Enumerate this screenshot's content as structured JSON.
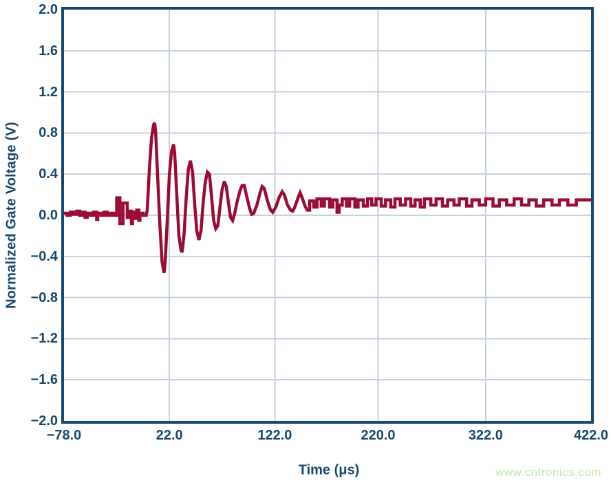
{
  "colors": {
    "navy": "#17486e",
    "grid": "#c5d1de",
    "trace": "#9a0c32",
    "watermark_green": "#c4e6ae",
    "background": "#ffffff"
  },
  "watermark": {
    "text": "www.cntronics.com"
  },
  "chart_data": {
    "type": "line",
    "title": "",
    "xlabel": "Time (μs)",
    "ylabel": "Normalized Gate Voltage (V)",
    "xlim": [
      -78,
      422
    ],
    "ylim": [
      -2.0,
      2.0
    ],
    "grid": true,
    "legend_position": "none",
    "xticks": {
      "values": [
        -78,
        22,
        122,
        220,
        322,
        422
      ],
      "labels": [
        "−78.0",
        "22.0",
        "122.0",
        "220.0",
        "322.0",
        "422.0"
      ]
    },
    "yticks": {
      "values": [
        2.0,
        1.6,
        1.2,
        0.8,
        0.4,
        0.0,
        -0.4,
        -0.8,
        -1.2,
        -1.6,
        -2.0
      ],
      "labels": [
        "2.0",
        "1.6",
        "1.2",
        "0.8",
        "0.4",
        "0.0",
        "−0.4",
        "−0.8",
        "−1.2",
        "−1.6",
        "−2.0"
      ]
    },
    "series": [
      {
        "name": "normalized gate voltage",
        "color": "#9a0c32",
        "stroke_width": 4.5,
        "points": [
          [
            -78,
            0.02
          ],
          [
            -75,
            0.02
          ],
          [
            -75,
            0
          ],
          [
            -72,
            0
          ],
          [
            -72,
            0.03
          ],
          [
            -69,
            0.03
          ],
          [
            -69,
            0.01
          ],
          [
            -66,
            0.01
          ],
          [
            -66,
            0.04
          ],
          [
            -63,
            0.04
          ],
          [
            -63,
            0
          ],
          [
            -60,
            0
          ],
          [
            -60,
            0.03
          ],
          [
            -58,
            0.03
          ],
          [
            -58,
            -0.02
          ],
          [
            -56,
            -0.02
          ],
          [
            -56,
            0.02
          ],
          [
            -53,
            0.02
          ],
          [
            -53,
            0
          ],
          [
            -50,
            0
          ],
          [
            -50,
            0.03
          ],
          [
            -47,
            0.03
          ],
          [
            -47,
            -0.04
          ],
          [
            -46,
            -0.04
          ],
          [
            -46,
            0.02
          ],
          [
            -43,
            0.02
          ],
          [
            -43,
            0
          ],
          [
            -40,
            0
          ],
          [
            -40,
            0.03
          ],
          [
            -37,
            0.03
          ],
          [
            -37,
            0
          ],
          [
            -34,
            0
          ],
          [
            -34,
            0.02
          ],
          [
            -31,
            0.02
          ],
          [
            -31,
            0
          ],
          [
            -28,
            0
          ],
          [
            -28,
            0.17
          ],
          [
            -25,
            0.17
          ],
          [
            -25,
            -0.08
          ],
          [
            -22,
            -0.08
          ],
          [
            -22,
            0.12
          ],
          [
            -18,
            0.12
          ],
          [
            -18,
            -0.02
          ],
          [
            -16,
            -0.02
          ],
          [
            -16,
            0.04
          ],
          [
            -14,
            0.04
          ],
          [
            -14,
            -0.08
          ],
          [
            -13,
            -0.08
          ],
          [
            -13,
            0.03
          ],
          [
            -11,
            0.03
          ],
          [
            -11,
            -0.03
          ],
          [
            -9,
            -0.03
          ],
          [
            -9,
            0.05
          ],
          [
            -7,
            0.05
          ],
          [
            -7,
            -0.05
          ],
          [
            -6,
            -0.05
          ],
          [
            -6,
            0.02
          ],
          [
            -3,
            0.02
          ],
          [
            -3,
            0
          ],
          [
            0,
            0
          ],
          [
            1,
            0.05
          ],
          [
            3,
            0.45
          ],
          [
            5,
            0.75
          ],
          [
            7,
            0.88
          ],
          [
            8,
            0.9
          ],
          [
            9,
            0.8
          ],
          [
            11,
            0.35
          ],
          [
            13,
            -0.1
          ],
          [
            15,
            -0.45
          ],
          [
            17,
            -0.56
          ],
          [
            18,
            -0.45
          ],
          [
            20,
            -0.05
          ],
          [
            22,
            0.4
          ],
          [
            24,
            0.62
          ],
          [
            26,
            0.69
          ],
          [
            27,
            0.6
          ],
          [
            29,
            0.2
          ],
          [
            31,
            -0.2
          ],
          [
            33,
            -0.34
          ],
          [
            34,
            -0.36
          ],
          [
            36,
            -0.18
          ],
          [
            38,
            0.18
          ],
          [
            40,
            0.45
          ],
          [
            42,
            0.53
          ],
          [
            44,
            0.42
          ],
          [
            46,
            0.1
          ],
          [
            48,
            -0.15
          ],
          [
            50,
            -0.24
          ],
          [
            52,
            -0.15
          ],
          [
            54,
            0.12
          ],
          [
            56,
            0.32
          ],
          [
            58,
            0.42
          ],
          [
            60,
            0.4
          ],
          [
            62,
            0.18
          ],
          [
            64,
            -0.05
          ],
          [
            66,
            -0.13
          ],
          [
            68,
            -0.1
          ],
          [
            70,
            0.08
          ],
          [
            72,
            0.25
          ],
          [
            74,
            0.33
          ],
          [
            76,
            0.28
          ],
          [
            78,
            0.12
          ],
          [
            80,
            -0.02
          ],
          [
            82,
            -0.05
          ],
          [
            84,
            0.02
          ],
          [
            86,
            0.12
          ],
          [
            89,
            0.24
          ],
          [
            91,
            0.29
          ],
          [
            93,
            0.29
          ],
          [
            95,
            0.2
          ],
          [
            98,
            0.07
          ],
          [
            100,
            0.01
          ],
          [
            102,
            0.02
          ],
          [
            105,
            0.1
          ],
          [
            108,
            0.22
          ],
          [
            110,
            0.28
          ],
          [
            112,
            0.26
          ],
          [
            115,
            0.14
          ],
          [
            118,
            0.05
          ],
          [
            120,
            0.03
          ],
          [
            123,
            0.08
          ],
          [
            126,
            0.17
          ],
          [
            129,
            0.23
          ],
          [
            131,
            0.2
          ],
          [
            134,
            0.1
          ],
          [
            137,
            0.05
          ],
          [
            139,
            0.04
          ],
          [
            141,
            0.08
          ],
          [
            144,
            0.17
          ],
          [
            146,
            0.22
          ],
          [
            148,
            0.17
          ],
          [
            151,
            0.08
          ],
          [
            153,
            0.05
          ],
          [
            155,
            0.05
          ],
          [
            155,
            0.14
          ],
          [
            159,
            0.14
          ],
          [
            159,
            0.08
          ],
          [
            162,
            0.08
          ],
          [
            162,
            0.16
          ],
          [
            166,
            0.16
          ],
          [
            166,
            0.09
          ],
          [
            169,
            0.09
          ],
          [
            169,
            0.16
          ],
          [
            174,
            0.16
          ],
          [
            174,
            0.08
          ],
          [
            177,
            0.08
          ],
          [
            177,
            0.15
          ],
          [
            181,
            0.15
          ],
          [
            181,
            0.03
          ],
          [
            183,
            0.03
          ],
          [
            183,
            0.1
          ],
          [
            186,
            0.1
          ],
          [
            186,
            0.16
          ],
          [
            190,
            0.16
          ],
          [
            190,
            0.09
          ],
          [
            193,
            0.09
          ],
          [
            193,
            0.16
          ],
          [
            198,
            0.16
          ],
          [
            198,
            0.08
          ],
          [
            201,
            0.08
          ],
          [
            201,
            0.15
          ],
          [
            206,
            0.15
          ],
          [
            206,
            0.09
          ],
          [
            210,
            0.09
          ],
          [
            210,
            0.16
          ],
          [
            214,
            0.16
          ],
          [
            214,
            0.1
          ],
          [
            218,
            0.1
          ],
          [
            218,
            0.16
          ],
          [
            223,
            0.16
          ],
          [
            223,
            0.09
          ],
          [
            227,
            0.09
          ],
          [
            227,
            0.15
          ],
          [
            232,
            0.15
          ],
          [
            232,
            0.08
          ],
          [
            236,
            0.08
          ],
          [
            236,
            0.16
          ],
          [
            241,
            0.16
          ],
          [
            241,
            0.1
          ],
          [
            246,
            0.1
          ],
          [
            246,
            0.16
          ],
          [
            251,
            0.16
          ],
          [
            251,
            0.09
          ],
          [
            255,
            0.09
          ],
          [
            255,
            0.15
          ],
          [
            260,
            0.15
          ],
          [
            260,
            0.08
          ],
          [
            264,
            0.08
          ],
          [
            264,
            0.16
          ],
          [
            270,
            0.16
          ],
          [
            270,
            0.1
          ],
          [
            275,
            0.1
          ],
          [
            275,
            0.16
          ],
          [
            281,
            0.16
          ],
          [
            281,
            0.09
          ],
          [
            286,
            0.09
          ],
          [
            286,
            0.15
          ],
          [
            292,
            0.15
          ],
          [
            292,
            0.1
          ],
          [
            297,
            0.1
          ],
          [
            297,
            0.16
          ],
          [
            304,
            0.16
          ],
          [
            304,
            0.09
          ],
          [
            309,
            0.09
          ],
          [
            309,
            0.15
          ],
          [
            316,
            0.15
          ],
          [
            316,
            0.1
          ],
          [
            322,
            0.1
          ],
          [
            322,
            0.16
          ],
          [
            329,
            0.16
          ],
          [
            329,
            0.09
          ],
          [
            335,
            0.09
          ],
          [
            335,
            0.15
          ],
          [
            342,
            0.15
          ],
          [
            342,
            0.1
          ],
          [
            349,
            0.1
          ],
          [
            349,
            0.16
          ],
          [
            356,
            0.16
          ],
          [
            356,
            0.1
          ],
          [
            363,
            0.1
          ],
          [
            363,
            0.15
          ],
          [
            370,
            0.15
          ],
          [
            370,
            0.09
          ],
          [
            377,
            0.09
          ],
          [
            377,
            0.15
          ],
          [
            385,
            0.15
          ],
          [
            385,
            0.1
          ],
          [
            392,
            0.1
          ],
          [
            392,
            0.15
          ],
          [
            400,
            0.15
          ],
          [
            400,
            0.1
          ],
          [
            408,
            0.1
          ],
          [
            408,
            0.15
          ],
          [
            422,
            0.15
          ]
        ]
      }
    ]
  }
}
